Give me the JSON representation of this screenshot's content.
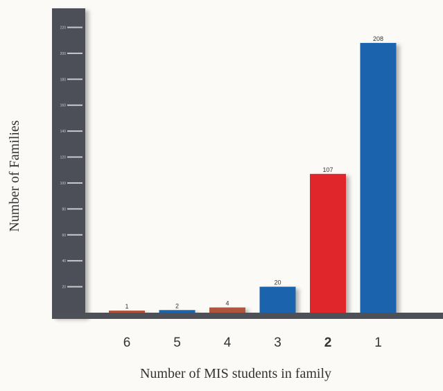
{
  "chart_data": {
    "type": "bar",
    "categories": [
      "6",
      "5",
      "4",
      "3",
      "2",
      "1"
    ],
    "values": [
      1,
      2,
      4,
      20,
      107,
      208
    ],
    "data_labels": [
      "1",
      "2",
      "4",
      "20",
      "107",
      "208"
    ],
    "bar_colors": [
      "#b0553a",
      "#1d63ad",
      "#b0553a",
      "#1d63ad",
      "#e0262b",
      "#1d63ad"
    ],
    "emphasized_category": "2",
    "xlabel": "Number of MIS students in family",
    "ylabel": "Number of Families",
    "yticks": [
      20,
      40,
      60,
      80,
      100,
      120,
      140,
      160,
      180,
      200,
      220
    ],
    "ylim": [
      0,
      224
    ],
    "colors": {
      "ruler": "#4e5058",
      "ruler_tick": "#c9cacd",
      "baseline": "#4e5058",
      "background": "#fbfaf6"
    }
  }
}
